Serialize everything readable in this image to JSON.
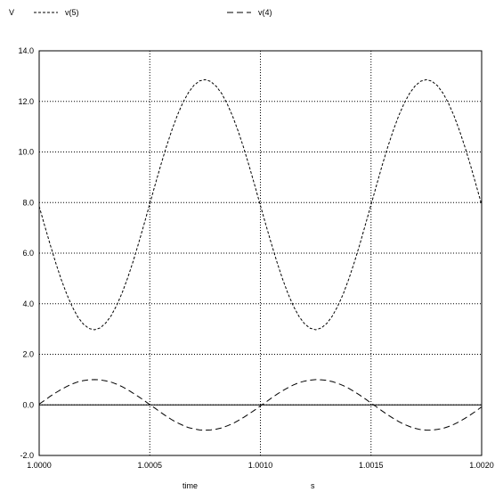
{
  "chart_data": {
    "type": "line",
    "ylabel": "V",
    "xlabel": "time",
    "xunit": "s",
    "xlim": [
      1.0,
      1.002
    ],
    "ylim": [
      -2.0,
      14.0
    ],
    "xticks": [
      1.0,
      1.0005,
      1.001,
      1.0015,
      1.002
    ],
    "xtick_labels": [
      "1.0000",
      "1.0005",
      "1.0010",
      "1.0015",
      "1.0020"
    ],
    "yticks": [
      -2.0,
      0.0,
      2.0,
      4.0,
      6.0,
      8.0,
      10.0,
      12.0,
      14.0
    ],
    "ytick_labels": [
      "-2.0",
      "0.0",
      "2.0",
      "4.0",
      "6.0",
      "8.0",
      "10.0",
      "12.0",
      "14.0"
    ],
    "grid": true,
    "legend_position": "top",
    "series": [
      {
        "name": "v(5)",
        "color": "#000000",
        "dash": "short",
        "x": [
          1.0,
          1.000025,
          1.00005,
          1.000075,
          1.0001,
          1.000125,
          1.00015,
          1.000175,
          1.0002,
          1.000225,
          1.00025,
          1.000275,
          1.0003,
          1.000325,
          1.00035,
          1.000375,
          1.0004,
          1.000425,
          1.00045,
          1.000475,
          1.0005,
          1.000525,
          1.00055,
          1.000575,
          1.0006,
          1.000625,
          1.00065,
          1.000675,
          1.0007,
          1.000725,
          1.00075,
          1.000775,
          1.0008,
          1.000825,
          1.00085,
          1.000875,
          1.0009,
          1.000925,
          1.00095,
          1.000975,
          1.001,
          1.001025,
          1.00105,
          1.001075,
          1.0011,
          1.001125,
          1.00115,
          1.001175,
          1.0012,
          1.001225,
          1.00125,
          1.001275,
          1.0013,
          1.001325,
          1.00135,
          1.001375,
          1.0014,
          1.001425,
          1.00145,
          1.001475,
          1.0015,
          1.001525,
          1.00155,
          1.001575,
          1.0016,
          1.001625,
          1.00165,
          1.001675,
          1.0017,
          1.001725,
          1.00175,
          1.001775,
          1.0018,
          1.001825,
          1.00185,
          1.001875,
          1.0019,
          1.001925,
          1.00195,
          1.001975,
          1.002
        ],
        "y": [
          7.85,
          7.08,
          6.33,
          5.61,
          4.95,
          4.37,
          3.87,
          3.47,
          3.19,
          3.02,
          2.97,
          3.04,
          3.23,
          3.52,
          3.93,
          4.43,
          5.02,
          5.68,
          6.41,
          7.17,
          7.95,
          8.73,
          9.49,
          10.21,
          10.87,
          11.46,
          11.96,
          12.35,
          12.64,
          12.81,
          12.86,
          12.79,
          12.6,
          12.31,
          11.9,
          11.4,
          10.81,
          10.15,
          9.42,
          8.66,
          7.88,
          7.11,
          6.36,
          5.64,
          4.98,
          4.39,
          3.89,
          3.49,
          3.2,
          3.03,
          2.97,
          3.04,
          3.22,
          3.51,
          3.91,
          4.4,
          4.99,
          5.65,
          6.37,
          7.14,
          7.91,
          8.69,
          9.46,
          10.18,
          10.84,
          11.43,
          11.93,
          12.33,
          12.62,
          12.8,
          12.86,
          12.8,
          12.62,
          12.33,
          11.93,
          11.43,
          10.84,
          10.18,
          9.46,
          8.69,
          7.91
        ]
      },
      {
        "name": "v(4)",
        "color": "#000000",
        "dash": "long",
        "x": [
          1.0,
          1.000025,
          1.00005,
          1.000075,
          1.0001,
          1.000125,
          1.00015,
          1.000175,
          1.0002,
          1.000225,
          1.00025,
          1.000275,
          1.0003,
          1.000325,
          1.00035,
          1.000375,
          1.0004,
          1.000425,
          1.00045,
          1.000475,
          1.0005,
          1.000525,
          1.00055,
          1.000575,
          1.0006,
          1.000625,
          1.00065,
          1.000675,
          1.0007,
          1.000725,
          1.00075,
          1.000775,
          1.0008,
          1.000825,
          1.00085,
          1.000875,
          1.0009,
          1.000925,
          1.00095,
          1.000975,
          1.001,
          1.001025,
          1.00105,
          1.001075,
          1.0011,
          1.001125,
          1.00115,
          1.001175,
          1.0012,
          1.001225,
          1.00125,
          1.001275,
          1.0013,
          1.001325,
          1.00135,
          1.001375,
          1.0014,
          1.001425,
          1.00145,
          1.001475,
          1.0015,
          1.001525,
          1.00155,
          1.001575,
          1.0016,
          1.001625,
          1.00165,
          1.001675,
          1.0017,
          1.001725,
          1.00175,
          1.001775,
          1.0018,
          1.001825,
          1.00185,
          1.001875,
          1.0019,
          1.001925,
          1.00195,
          1.001975,
          1.002
        ],
        "y": [
          0.03,
          0.18,
          0.34,
          0.48,
          0.61,
          0.73,
          0.83,
          0.91,
          0.96,
          0.99,
          1.0,
          0.99,
          0.95,
          0.9,
          0.82,
          0.72,
          0.6,
          0.46,
          0.32,
          0.17,
          0.01,
          -0.14,
          -0.3,
          -0.45,
          -0.59,
          -0.71,
          -0.81,
          -0.9,
          -0.95,
          -0.99,
          -1.0,
          -0.99,
          -0.96,
          -0.91,
          -0.83,
          -0.74,
          -0.62,
          -0.49,
          -0.35,
          -0.2,
          -0.04,
          0.11,
          0.27,
          0.42,
          0.56,
          0.68,
          0.79,
          0.88,
          0.94,
          0.98,
          1.0,
          0.99,
          0.97,
          0.92,
          0.85,
          0.76,
          0.65,
          0.52,
          0.38,
          0.23,
          0.07,
          -0.08,
          -0.24,
          -0.39,
          -0.53,
          -0.66,
          -0.77,
          -0.86,
          -0.93,
          -0.98,
          -1.0,
          -1.0,
          -0.97,
          -0.93,
          -0.86,
          -0.77,
          -0.66,
          -0.53,
          -0.39,
          -0.24,
          -0.08
        ]
      }
    ]
  }
}
